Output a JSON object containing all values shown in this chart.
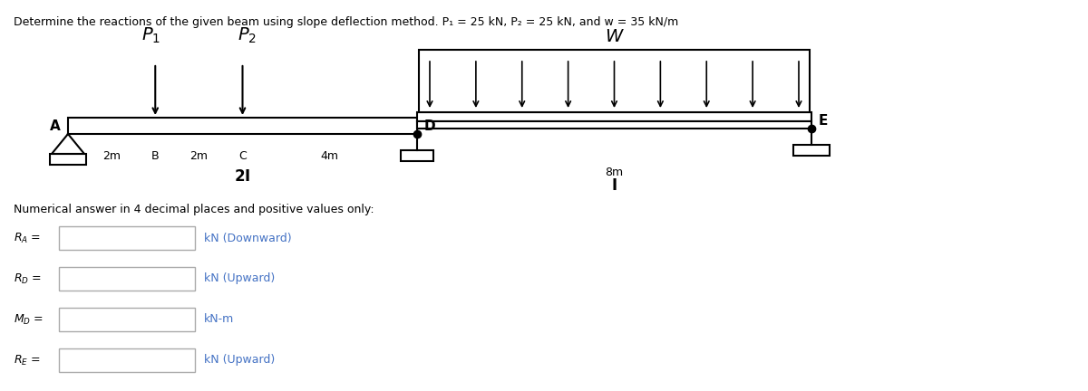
{
  "title": "Determine the reactions of the given beam using slope deflection method. P₁ = 25 kN, P₂ = 25 kN, and w = 35 kN/m",
  "title_color": "#4472C4",
  "title_fontsize": 9.0,
  "numerical_label": "Numerical answer in 4 decimal places and positive values only:",
  "reactions": [
    {
      "label": "R_A =",
      "label_math": "$R_A$ =",
      "unit": "kN (Downward)"
    },
    {
      "label": "R_D =",
      "label_math": "$R_D$ =",
      "unit": "kN (Upward)"
    },
    {
      "label": "M_D =",
      "label_math": "$M_D$ =",
      "unit": "kN-m"
    },
    {
      "label": "R_E =",
      "label_math": "$R_E$ =",
      "unit": "kN (Upward)"
    }
  ],
  "bg_color": "white",
  "beam_color": "black",
  "unit_text_color": "#4472C4",
  "label_color": "#4472C4",
  "title_text_color": "black"
}
